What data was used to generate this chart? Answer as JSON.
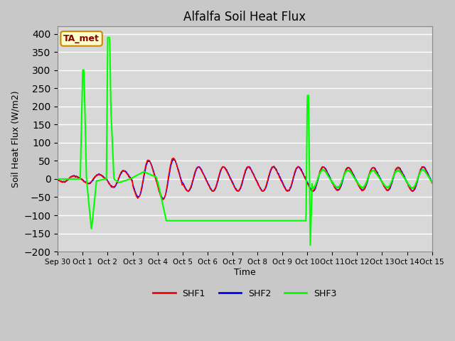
{
  "title": "Alfalfa Soil Heat Flux",
  "ylabel": "Soil Heat Flux (W/m2)",
  "xlabel": "Time",
  "ylim": [
    -200,
    420
  ],
  "yticks": [
    -200,
    -150,
    -100,
    -50,
    0,
    50,
    100,
    150,
    200,
    250,
    300,
    350,
    400
  ],
  "background_color": "#d8d8d8",
  "plot_bg_color": "#d8d8d8",
  "shf1_color": "red",
  "shf2_color": "blue",
  "shf3_color": "#00ff00",
  "annotation_text": "TA_met",
  "annotation_bg": "#ffffcc",
  "annotation_border": "#cc8800",
  "tick_labels": [
    "Sep 30",
    "Oct 1",
    "Oct 2",
    "Oct 3",
    "Oct 4",
    "Oct 5",
    "Oct 6",
    "Oct 7",
    "Oct 8",
    "Oct 9",
    "Oct 10",
    "Oct 11",
    "Oct 12",
    "Oct 13",
    "Oct 14",
    "Oct 15"
  ],
  "shf3_waypoints_t": [
    0.0,
    0.9,
    1.0,
    1.05,
    1.15,
    1.35,
    1.55,
    1.95,
    2.0,
    2.08,
    2.13,
    2.25,
    2.45,
    2.9,
    3.45,
    3.95,
    4.05,
    4.35,
    4.55,
    5.0,
    9.95,
    10.0,
    10.05,
    10.12,
    10.2,
    10.5,
    11.0,
    16.0
  ],
  "shf3_waypoints_v": [
    0,
    0,
    300,
    300,
    0,
    -140,
    -5,
    0,
    390,
    390,
    190,
    0,
    -10,
    0,
    20,
    5,
    -20,
    -115,
    -115,
    -115,
    -115,
    230,
    230,
    -185,
    0,
    20,
    5,
    5
  ]
}
